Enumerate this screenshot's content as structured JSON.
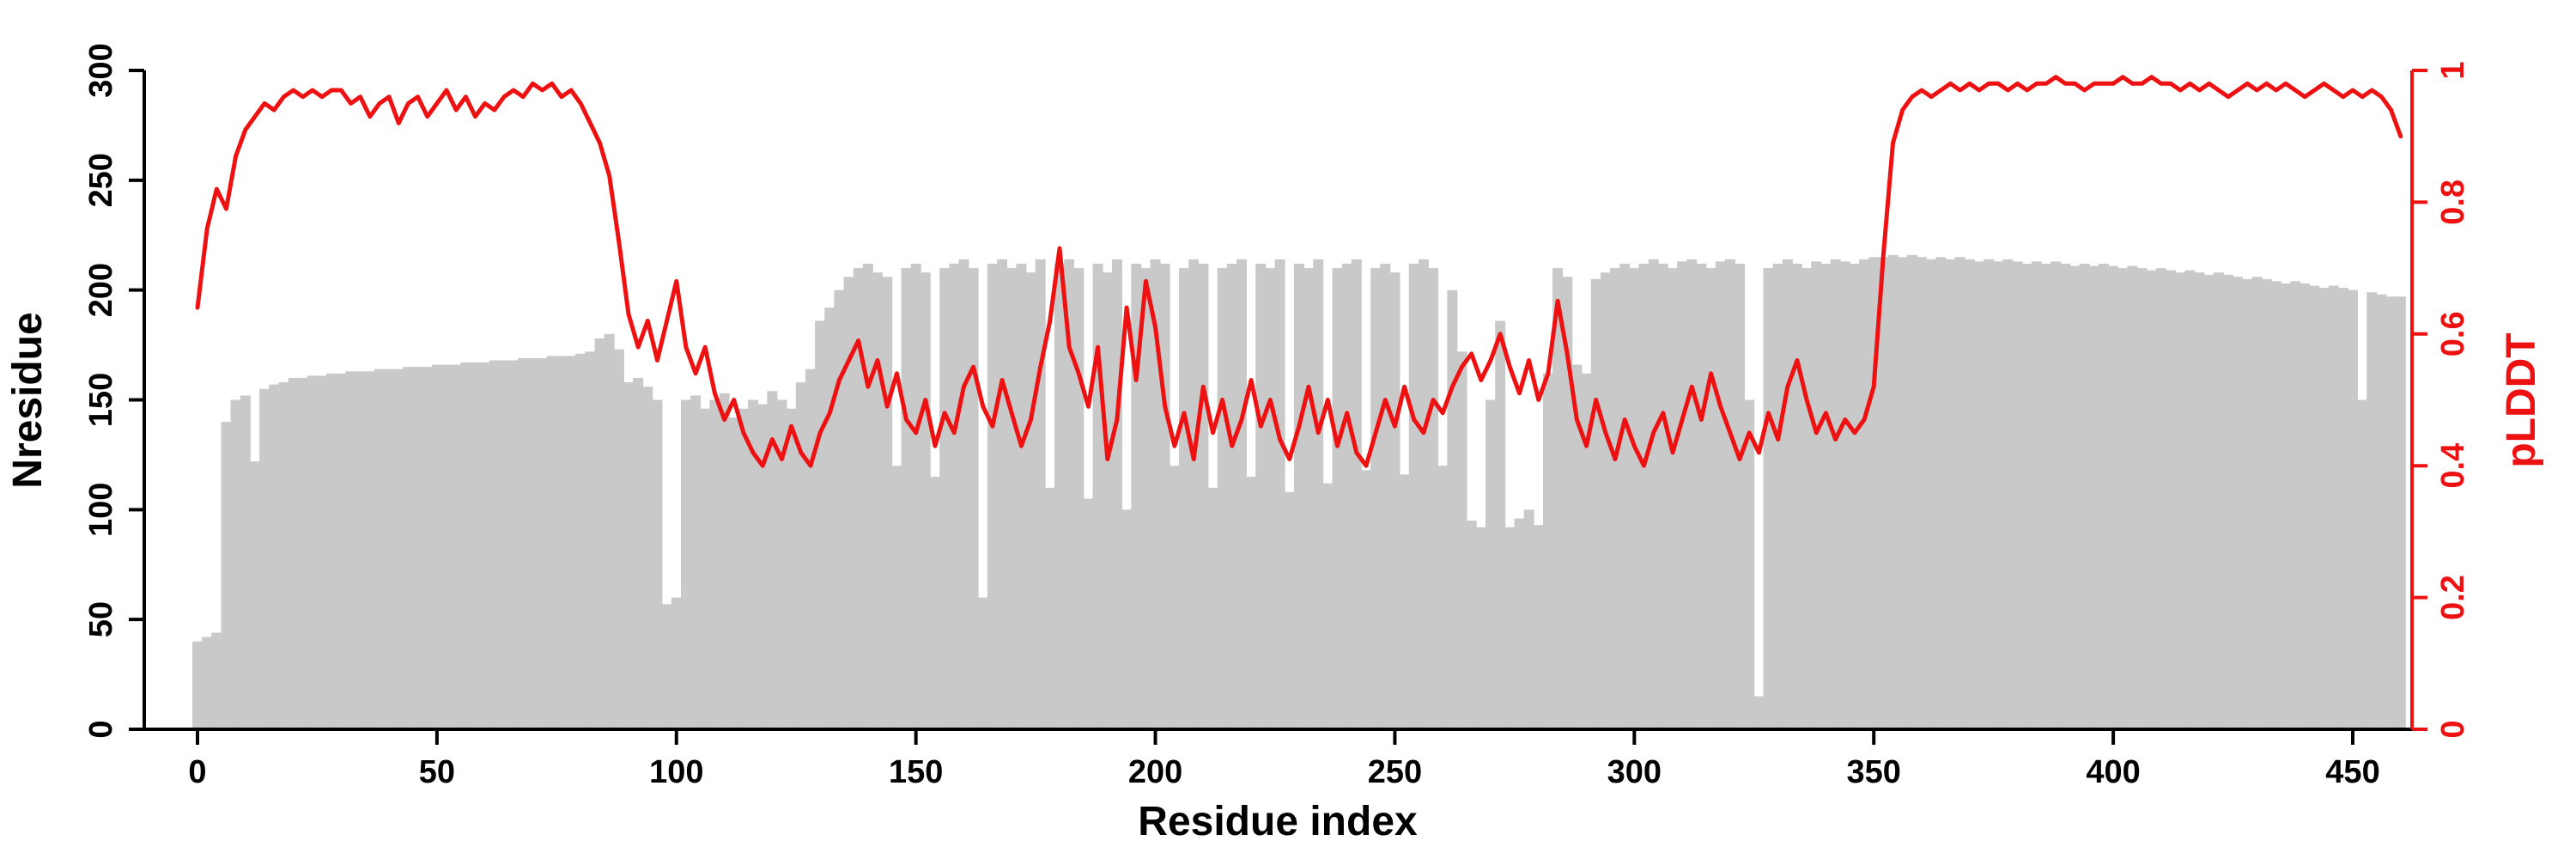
{
  "chart_data": {
    "type": "bar+line",
    "title": "",
    "xlabel": "Residue index",
    "ylabel_left": "Nresidue",
    "ylabel_right": "pLDDT",
    "grid": false,
    "legend": "none",
    "x_range": [
      0,
      462
    ],
    "x_start": 0,
    "x_step": 2,
    "x_ticks": [
      0,
      50,
      100,
      150,
      200,
      250,
      300,
      350,
      400,
      450
    ],
    "y_left_range": [
      0,
      300
    ],
    "y_left_ticks": [
      0,
      50,
      100,
      150,
      200,
      250,
      300
    ],
    "y_right_range": [
      0,
      1
    ],
    "y_right_ticks": [
      0,
      0.2,
      0.4,
      0.6,
      0.8,
      1
    ],
    "y_right_tick_labels": [
      "0",
      "0.2",
      "0.4",
      "0.6",
      "0.8",
      "1"
    ],
    "colors": {
      "bar": "#c9c9c9",
      "line": "#ee1111",
      "axis_left": "#000000",
      "axis_bottom": "#000000",
      "axis_right": "#ee1111",
      "background": "#ffffff"
    },
    "series": [
      {
        "name": "Nresidue",
        "type": "bar",
        "axis": "left",
        "values": [
          40,
          42,
          44,
          140,
          150,
          152,
          122,
          155,
          157,
          158,
          160,
          160,
          161,
          161,
          162,
          162,
          163,
          163,
          163,
          164,
          164,
          164,
          165,
          165,
          165,
          166,
          166,
          166,
          167,
          167,
          167,
          168,
          168,
          168,
          169,
          169,
          169,
          170,
          170,
          170,
          171,
          172,
          178,
          180,
          173,
          158,
          160,
          156,
          150,
          57,
          60,
          150,
          152,
          146,
          150,
          153,
          142,
          146,
          150,
          148,
          154,
          150,
          146,
          158,
          164,
          186,
          192,
          200,
          206,
          210,
          212,
          208,
          206,
          120,
          210,
          212,
          208,
          115,
          210,
          212,
          214,
          210,
          60,
          212,
          214,
          210,
          212,
          208,
          214,
          110,
          212,
          214,
          210,
          105,
          212,
          208,
          214,
          100,
          212,
          210,
          214,
          212,
          120,
          210,
          214,
          212,
          110,
          210,
          212,
          214,
          115,
          212,
          210,
          214,
          108,
          212,
          210,
          214,
          112,
          210,
          212,
          214,
          118,
          210,
          212,
          208,
          116,
          212,
          214,
          210,
          120,
          200,
          172,
          95,
          92,
          150,
          186,
          92,
          96,
          100,
          93,
          162,
          210,
          206,
          166,
          162,
          205,
          208,
          210,
          212,
          210,
          212,
          214,
          212,
          210,
          213,
          214,
          212,
          210,
          213,
          214,
          212,
          150,
          15,
          210,
          212,
          214,
          212,
          210,
          213,
          212,
          214,
          213,
          212,
          214,
          215,
          215,
          216,
          215,
          216,
          215,
          214,
          215,
          214,
          215,
          214,
          213,
          214,
          213,
          214,
          213,
          212,
          213,
          212,
          213,
          212,
          211,
          212,
          211,
          212,
          211,
          210,
          211,
          210,
          209,
          210,
          209,
          208,
          209,
          208,
          207,
          208,
          207,
          206,
          205,
          206,
          205,
          204,
          203,
          204,
          203,
          202,
          201,
          202,
          201,
          200,
          150,
          199,
          198,
          197,
          197
        ]
      },
      {
        "name": "pLDDT",
        "type": "line",
        "axis": "right",
        "values": [
          0.64,
          0.76,
          0.82,
          0.79,
          0.87,
          0.91,
          0.93,
          0.95,
          0.94,
          0.96,
          0.97,
          0.96,
          0.97,
          0.96,
          0.97,
          0.97,
          0.95,
          0.96,
          0.93,
          0.95,
          0.96,
          0.92,
          0.95,
          0.96,
          0.93,
          0.95,
          0.97,
          0.94,
          0.96,
          0.93,
          0.95,
          0.94,
          0.96,
          0.97,
          0.96,
          0.98,
          0.97,
          0.98,
          0.96,
          0.97,
          0.95,
          0.92,
          0.89,
          0.84,
          0.74,
          0.63,
          0.58,
          0.62,
          0.56,
          0.62,
          0.68,
          0.58,
          0.54,
          0.58,
          0.51,
          0.47,
          0.5,
          0.45,
          0.42,
          0.4,
          0.44,
          0.41,
          0.46,
          0.42,
          0.4,
          0.45,
          0.48,
          0.53,
          0.56,
          0.59,
          0.52,
          0.56,
          0.49,
          0.54,
          0.47,
          0.45,
          0.5,
          0.43,
          0.48,
          0.45,
          0.52,
          0.55,
          0.49,
          0.46,
          0.53,
          0.48,
          0.43,
          0.47,
          0.55,
          0.62,
          0.73,
          0.58,
          0.54,
          0.49,
          0.58,
          0.41,
          0.47,
          0.64,
          0.53,
          0.68,
          0.61,
          0.49,
          0.43,
          0.48,
          0.41,
          0.52,
          0.45,
          0.5,
          0.43,
          0.47,
          0.53,
          0.46,
          0.5,
          0.44,
          0.41,
          0.46,
          0.52,
          0.45,
          0.5,
          0.43,
          0.48,
          0.42,
          0.4,
          0.45,
          0.5,
          0.46,
          0.52,
          0.47,
          0.45,
          0.5,
          0.48,
          0.52,
          0.55,
          0.57,
          0.53,
          0.56,
          0.6,
          0.55,
          0.51,
          0.56,
          0.5,
          0.54,
          0.65,
          0.57,
          0.47,
          0.43,
          0.5,
          0.45,
          0.41,
          0.47,
          0.43,
          0.4,
          0.45,
          0.48,
          0.42,
          0.47,
          0.52,
          0.47,
          0.54,
          0.49,
          0.45,
          0.41,
          0.45,
          0.42,
          0.48,
          0.44,
          0.52,
          0.56,
          0.5,
          0.45,
          0.48,
          0.44,
          0.47,
          0.45,
          0.47,
          0.52,
          0.72,
          0.89,
          0.94,
          0.96,
          0.97,
          0.96,
          0.97,
          0.98,
          0.97,
          0.98,
          0.97,
          0.98,
          0.98,
          0.97,
          0.98,
          0.97,
          0.98,
          0.98,
          0.99,
          0.98,
          0.98,
          0.97,
          0.98,
          0.98,
          0.98,
          0.99,
          0.98,
          0.98,
          0.99,
          0.98,
          0.98,
          0.97,
          0.98,
          0.97,
          0.98,
          0.97,
          0.96,
          0.97,
          0.98,
          0.97,
          0.98,
          0.97,
          0.98,
          0.97,
          0.96,
          0.97,
          0.98,
          0.97,
          0.96,
          0.97,
          0.96,
          0.97,
          0.96,
          0.94,
          0.9
        ]
      }
    ]
  }
}
